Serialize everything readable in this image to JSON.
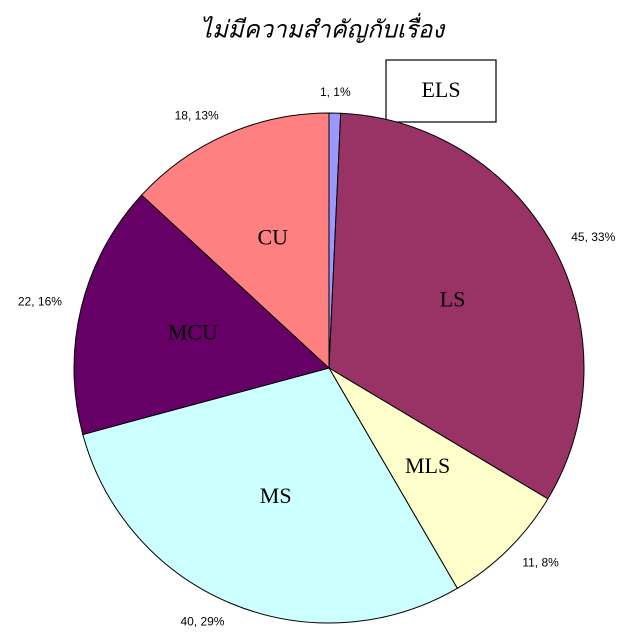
{
  "chart_data": {
    "type": "pie",
    "title": "ไม่มีความสำคัญกับเรื่อง",
    "categories": [
      "ELS",
      "LS",
      "MLS",
      "MS",
      "MCU",
      "CU"
    ],
    "values": [
      1,
      45,
      11,
      40,
      22,
      18
    ],
    "value_labels": [
      "1, 1%",
      "45, 33%",
      "11, 8%",
      "40, 29%",
      "22, 16%",
      "18, 13%"
    ],
    "colors": [
      "#9999ff",
      "#993366",
      "#ffffcc",
      "#ccffff",
      "#660066",
      "#ff8080"
    ]
  }
}
